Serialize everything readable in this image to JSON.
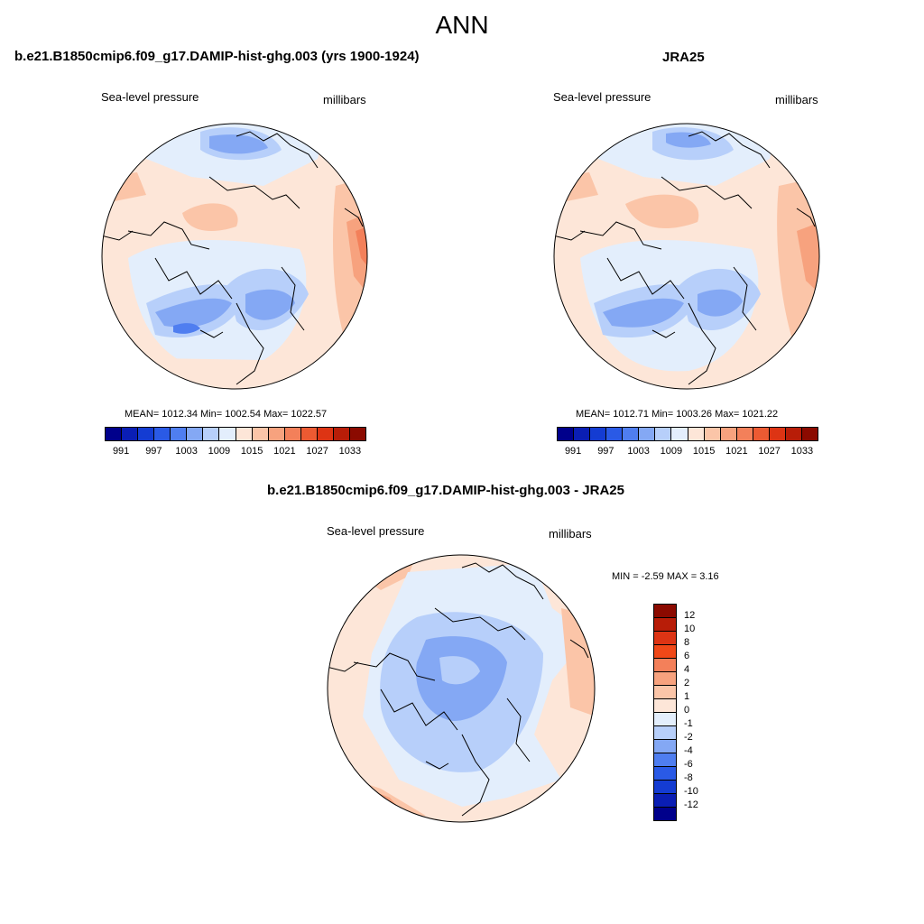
{
  "title": "ANN",
  "panel_left": {
    "case_title": "b.e21.B1850cmip6.f09_g17.DAMIP-hist-ghg.003 (yrs 1900-1924)",
    "variable": "Sea-level pressure",
    "units": "millibars",
    "stats": "MEAN= 1012.34  Min= 1002.54  Max= 1022.57"
  },
  "panel_right": {
    "case_title": "JRA25",
    "variable": "Sea-level pressure",
    "units": "millibars",
    "stats": "MEAN= 1012.71  Min= 1003.26  Max= 1021.22"
  },
  "panel_diff": {
    "case_title": "b.e21.B1850cmip6.f09_g17.DAMIP-hist-ghg.003 - JRA25",
    "variable": "Sea-level pressure",
    "units": "millibars",
    "stats": "MIN =  -2.59 MAX =   3.16"
  },
  "abs_colorbar": {
    "colors": [
      "#00008b",
      "#0a1eb4",
      "#143cd2",
      "#2a5ae6",
      "#4f7ef0",
      "#84a8f4",
      "#b7cffa",
      "#e3eefc",
      "#fde6d8",
      "#fbc5a8",
      "#f7a27e",
      "#f3805a",
      "#ec5a32",
      "#dd3414",
      "#b81d08",
      "#8b0a00"
    ],
    "labels": [
      "991",
      "997",
      "1003",
      "1009",
      "1015",
      "1021",
      "1027",
      "1033"
    ]
  },
  "diff_colorbar": {
    "colors": [
      "#8b0a00",
      "#b81d08",
      "#dd3414",
      "#f04818",
      "#f3805a",
      "#f7a27e",
      "#fbc5a8",
      "#fde6d8",
      "#e3eefc",
      "#b7cffa",
      "#84a8f4",
      "#4f7ef0",
      "#2a5ae6",
      "#143cd2",
      "#0a1eb4",
      "#00008b"
    ],
    "labels": [
      "12",
      "10",
      "8",
      "6",
      "4",
      "2",
      "1",
      "0",
      "-1",
      "-2",
      "-4",
      "-6",
      "-8",
      "-10",
      "-12"
    ]
  }
}
